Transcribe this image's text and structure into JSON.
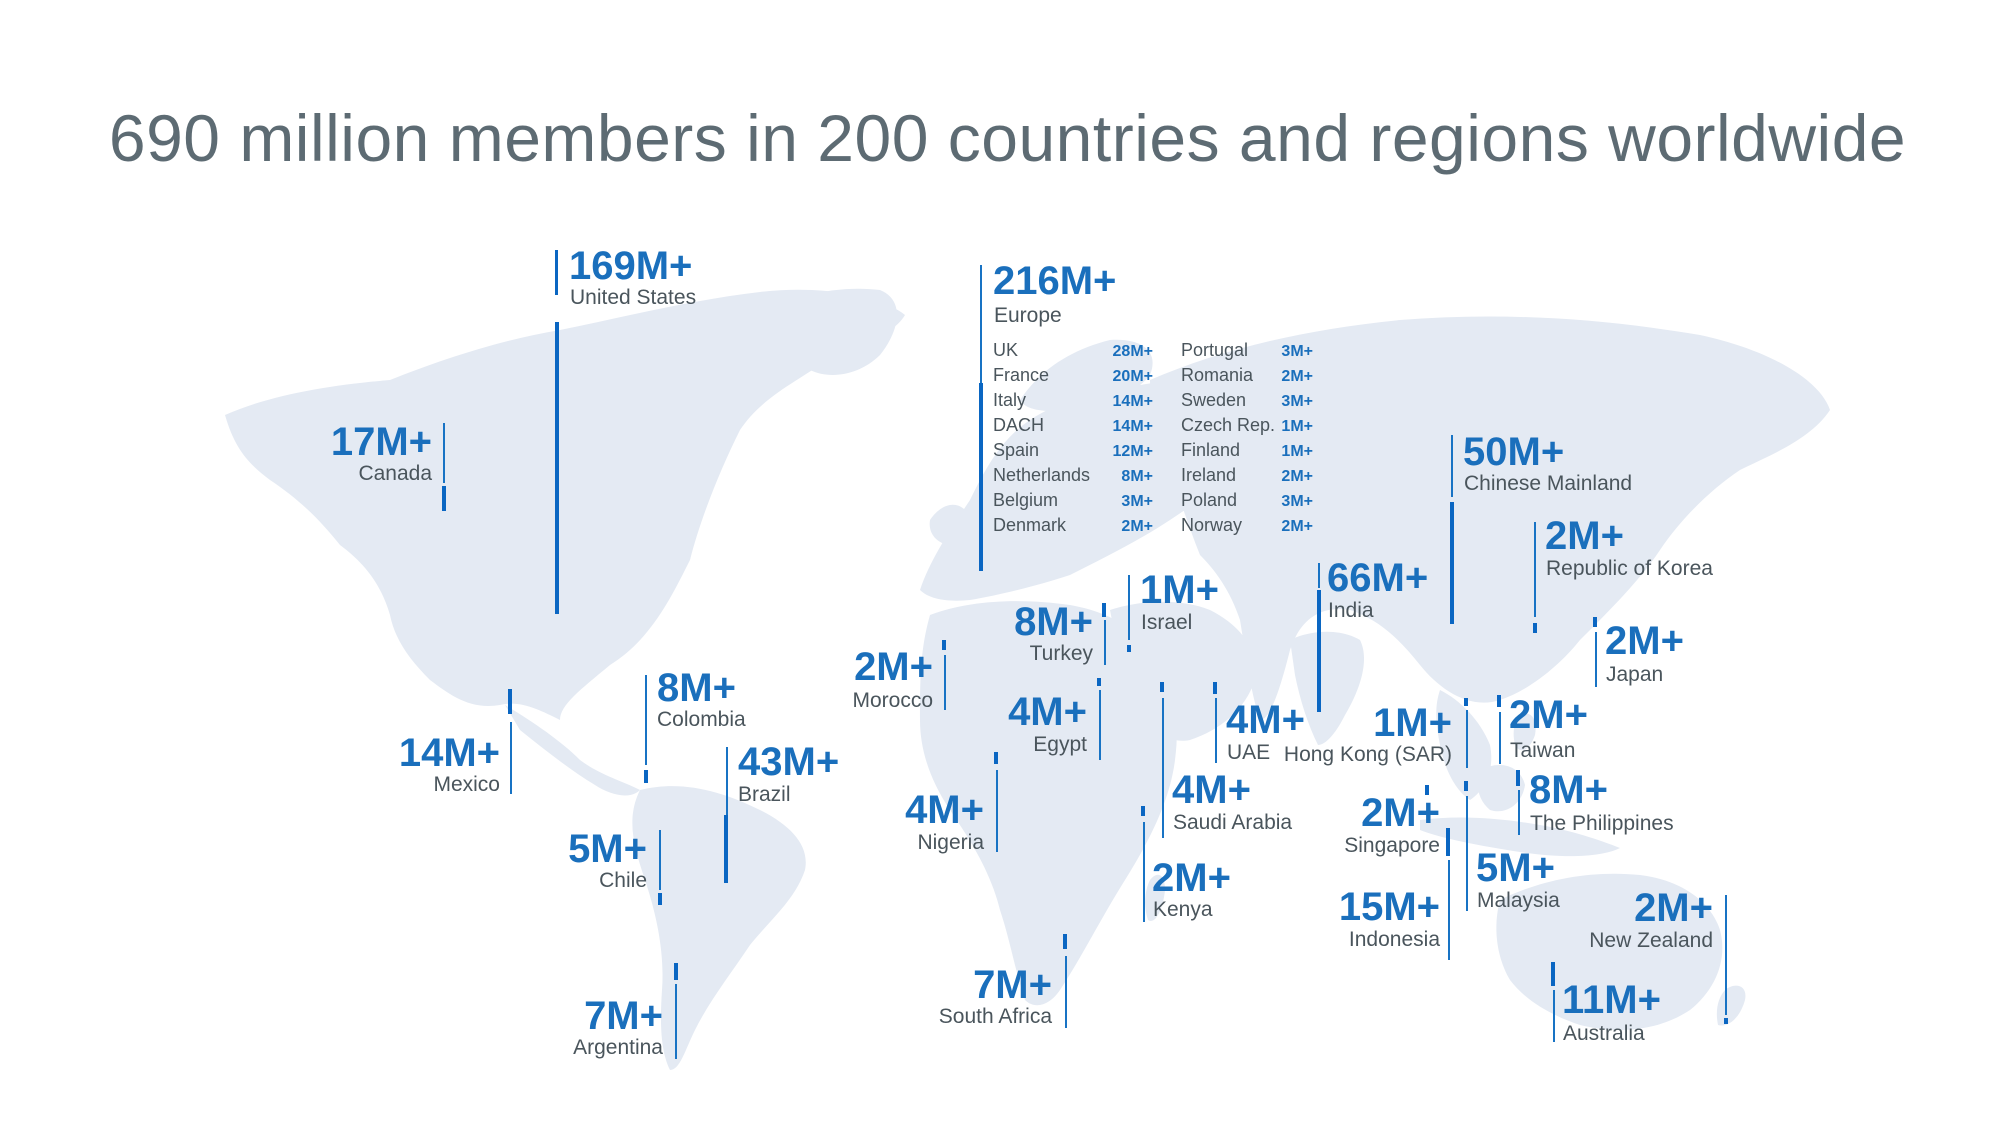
{
  "title": "690 million members in 200 countries and regions worldwide",
  "colors": {
    "accent": "#0a66c2",
    "map": "#e4eaf3",
    "text": "#4a555c"
  },
  "regions": {
    "us": {
      "value": "169M+",
      "name": "United States"
    },
    "canada": {
      "value": "17M+",
      "name": "Canada"
    },
    "mexico": {
      "value": "14M+",
      "name": "Mexico"
    },
    "colombia": {
      "value": "8M+",
      "name": "Colombia"
    },
    "brazil": {
      "value": "43M+",
      "name": "Brazil"
    },
    "chile": {
      "value": "5M+",
      "name": "Chile"
    },
    "argentina": {
      "value": "7M+",
      "name": "Argentina"
    },
    "europe": {
      "value": "216M+",
      "name": "Europe"
    },
    "morocco": {
      "value": "2M+",
      "name": "Morocco"
    },
    "turkey": {
      "value": "8M+",
      "name": "Turkey"
    },
    "israel": {
      "value": "1M+",
      "name": "Israel"
    },
    "egypt": {
      "value": "4M+",
      "name": "Egypt"
    },
    "uae": {
      "value": "4M+",
      "name": "UAE"
    },
    "nigeria": {
      "value": "4M+",
      "name": "Nigeria"
    },
    "saudi": {
      "value": "4M+",
      "name": "Saudi Arabia"
    },
    "kenya": {
      "value": "2M+",
      "name": "Kenya"
    },
    "south_africa": {
      "value": "7M+",
      "name": "South Africa"
    },
    "india": {
      "value": "66M+",
      "name": "India"
    },
    "china": {
      "value": "50M+",
      "name": "Chinese Mainland"
    },
    "korea": {
      "value": "2M+",
      "name": "Republic of Korea"
    },
    "japan": {
      "value": "2M+",
      "name": "Japan"
    },
    "hongkong": {
      "value": "1M+",
      "name": "Hong Kong (SAR)"
    },
    "taiwan": {
      "value": "2M+",
      "name": "Taiwan"
    },
    "singapore": {
      "value": "2M+",
      "name": "Singapore"
    },
    "philippines": {
      "value": "8M+",
      "name": "The Philippines"
    },
    "malaysia": {
      "value": "5M+",
      "name": "Malaysia"
    },
    "indonesia": {
      "value": "15M+",
      "name": "Indonesia"
    },
    "newzealand": {
      "value": "2M+",
      "name": "New Zealand"
    },
    "australia": {
      "value": "11M+",
      "name": "Australia"
    }
  },
  "europe_breakdown": [
    {
      "name": "UK",
      "value": "28M+"
    },
    {
      "name": "France",
      "value": "20M+"
    },
    {
      "name": "Italy",
      "value": "14M+"
    },
    {
      "name": "DACH",
      "value": "14M+"
    },
    {
      "name": "Spain",
      "value": "12M+"
    },
    {
      "name": "Netherlands",
      "value": "8M+"
    },
    {
      "name": "Belgium",
      "value": "3M+"
    },
    {
      "name": "Denmark",
      "value": "2M+"
    },
    {
      "name": "Portugal",
      "value": "3M+"
    },
    {
      "name": "Romania",
      "value": "2M+"
    },
    {
      "name": "Sweden",
      "value": "3M+"
    },
    {
      "name": "Czech Rep.",
      "value": "1M+"
    },
    {
      "name": "Finland",
      "value": "1M+"
    },
    {
      "name": "Ireland",
      "value": "2M+"
    },
    {
      "name": "Poland",
      "value": "3M+"
    },
    {
      "name": "Norway",
      "value": "2M+"
    }
  ]
}
